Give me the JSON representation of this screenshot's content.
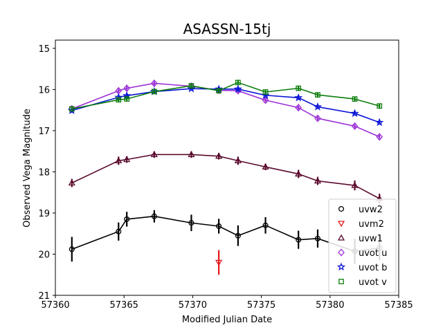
{
  "chart_data": {
    "type": "scatter",
    "title": "ASASSN-15tj",
    "xlabel": "Modified Julian Date",
    "ylabel": "Observed Vega Magnitude",
    "xlim": [
      57360,
      57385
    ],
    "ylim": [
      21,
      14.8
    ],
    "y_inverted": true,
    "xticks": [
      "57360",
      "57365",
      "57370",
      "57375",
      "57380",
      "57385"
    ],
    "yticks": [
      "15",
      "16",
      "17",
      "18",
      "19",
      "20",
      "21"
    ],
    "grid": false,
    "legend_position": "lower-right",
    "series": [
      {
        "name": "uvw2",
        "color": "#000000",
        "marker": "circle",
        "line": true,
        "x": [
          57361.2,
          57364.6,
          57365.2,
          57367.2,
          57369.9,
          57371.9,
          57373.3,
          57375.3,
          57377.7,
          57379.1,
          57381.8,
          57383.6
        ],
        "y": [
          19.88,
          19.45,
          19.15,
          19.08,
          19.24,
          19.32,
          19.55,
          19.3,
          19.65,
          19.62,
          19.93,
          19.85
        ],
        "yerr": [
          0.3,
          0.22,
          0.18,
          0.15,
          0.2,
          0.18,
          0.25,
          0.2,
          0.22,
          0.22,
          0.3,
          0.3
        ]
      },
      {
        "name": "uvm2",
        "color": "#e41a1c",
        "marker": "triangle-down",
        "line": false,
        "x": [
          57371.9
        ],
        "y": [
          20.2
        ],
        "yerr": [
          0.3
        ]
      },
      {
        "name": "uvw1",
        "color": "#5a0a2d",
        "marker": "triangle-up",
        "line": true,
        "x": [
          57361.2,
          57364.6,
          57365.2,
          57367.2,
          57369.9,
          57371.9,
          57373.3,
          57375.3,
          57377.7,
          57379.1,
          57381.8,
          57383.6
        ],
        "y": [
          18.27,
          17.73,
          17.7,
          17.58,
          17.58,
          17.62,
          17.73,
          17.88,
          18.05,
          18.22,
          18.33,
          18.65
        ],
        "yerr": [
          0.1,
          0.1,
          0.08,
          0.08,
          0.08,
          0.08,
          0.1,
          0.08,
          0.1,
          0.1,
          0.12,
          0.12
        ]
      },
      {
        "name": "uvot u",
        "color": "#9b30d6",
        "marker": "diamond",
        "line": true,
        "x": [
          57361.2,
          57364.6,
          57365.2,
          57367.2,
          57369.9,
          57371.9,
          57373.3,
          57375.3,
          57377.7,
          57379.1,
          57381.8,
          57383.6
        ],
        "y": [
          16.47,
          16.03,
          15.97,
          15.85,
          15.92,
          16.02,
          16.03,
          16.26,
          16.44,
          16.7,
          16.89,
          17.15
        ],
        "yerr": [
          0.05,
          0.05,
          0.05,
          0.05,
          0.05,
          0.05,
          0.05,
          0.05,
          0.05,
          0.05,
          0.05,
          0.05
        ]
      },
      {
        "name": "uvot b",
        "color": "#0a14d6",
        "marker": "star",
        "line": true,
        "x": [
          57361.2,
          57364.6,
          57365.2,
          57367.2,
          57369.9,
          57371.9,
          57373.3,
          57375.3,
          57377.7,
          57379.1,
          57381.8,
          57383.6
        ],
        "y": [
          16.51,
          16.19,
          16.15,
          16.05,
          15.98,
          15.99,
          15.99,
          16.14,
          16.2,
          16.42,
          16.58,
          16.8
        ],
        "yerr": [
          0.04,
          0.04,
          0.04,
          0.04,
          0.04,
          0.04,
          0.04,
          0.04,
          0.04,
          0.04,
          0.04,
          0.04
        ]
      },
      {
        "name": "uvot v",
        "color": "#0a7d0a",
        "marker": "square",
        "line": true,
        "x": [
          57361.2,
          57364.6,
          57365.2,
          57367.2,
          57369.9,
          57371.9,
          57373.3,
          57375.3,
          57377.7,
          57379.1,
          57381.8,
          57383.6
        ],
        "y": [
          16.47,
          16.25,
          16.23,
          16.05,
          15.91,
          16.03,
          15.83,
          16.06,
          15.97,
          16.13,
          16.23,
          16.4
        ],
        "yerr": [
          0.05,
          0.05,
          0.05,
          0.05,
          0.05,
          0.05,
          0.05,
          0.05,
          0.05,
          0.05,
          0.05,
          0.05
        ]
      }
    ]
  }
}
